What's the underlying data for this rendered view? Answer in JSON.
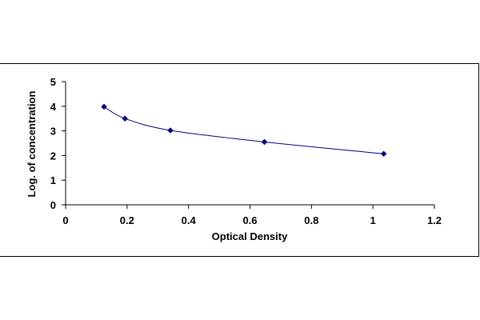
{
  "chart_data": {
    "type": "scatter",
    "xlabel": "Optical Density",
    "ylabel": "Log. of concentration",
    "xlim": [
      0,
      1.2
    ],
    "ylim": [
      0,
      5
    ],
    "x_ticks": [
      "0",
      "0.2",
      "0.4",
      "0.6",
      "0.8",
      "1",
      "1.2"
    ],
    "y_ticks": [
      "0",
      "1",
      "2",
      "3",
      "4",
      "5"
    ],
    "grid": false,
    "legend": "none",
    "series": [
      {
        "x": [
          0.125,
          0.193,
          0.341,
          0.647,
          1.035
        ],
        "y": [
          3.98,
          3.5,
          3.02,
          2.55,
          2.07
        ],
        "marker": "diamond",
        "line": "smooth",
        "color": "#000080"
      }
    ]
  }
}
